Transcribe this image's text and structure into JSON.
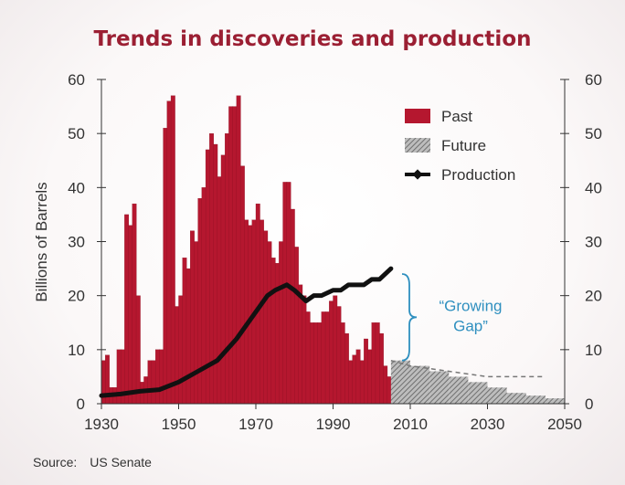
{
  "colors": {
    "title": "#9b1f33",
    "past": "#b5172f",
    "future": "#8f8f8f",
    "production": "#111111",
    "gap_annotation": "#2e8fbf",
    "axis": "#333333"
  },
  "source": {
    "label": "Source:",
    "value": "US Senate"
  },
  "chart_data": {
    "type": "bar",
    "title": "Trends in discoveries and production",
    "ylabel": "Billions of Barrels",
    "ylim": [
      0,
      60
    ],
    "xlim": [
      1930,
      2050
    ],
    "x_ticks": [
      "1930",
      "1950",
      "1970",
      "1990",
      "2010",
      "2030",
      "2050"
    ],
    "y_ticks": [
      "0",
      "10",
      "20",
      "30",
      "40",
      "50",
      "60"
    ],
    "y2_ticks": [
      "0",
      "10",
      "20",
      "30",
      "40",
      "50",
      "60"
    ],
    "legend": {
      "position": "top-right",
      "entries": [
        "Past",
        "Future",
        "Production"
      ]
    },
    "annotation": "“Growing Gap”",
    "series": [
      {
        "name": "Past",
        "style": "bars",
        "x": [
          1930,
          1931,
          1932,
          1933,
          1934,
          1935,
          1936,
          1937,
          1938,
          1939,
          1940,
          1941,
          1942,
          1943,
          1944,
          1945,
          1946,
          1947,
          1948,
          1949,
          1950,
          1951,
          1952,
          1953,
          1954,
          1955,
          1956,
          1957,
          1958,
          1959,
          1960,
          1961,
          1962,
          1963,
          1964,
          1965,
          1966,
          1967,
          1968,
          1969,
          1970,
          1971,
          1972,
          1973,
          1974,
          1975,
          1976,
          1977,
          1978,
          1979,
          1980,
          1981,
          1982,
          1983,
          1984,
          1985,
          1986,
          1987,
          1988,
          1989,
          1990,
          1991,
          1992,
          1993,
          1994,
          1995,
          1996,
          1997,
          1998,
          1999,
          2000,
          2001,
          2002,
          2003,
          2004
        ],
        "values": [
          8,
          9,
          3,
          3,
          10,
          10,
          35,
          33,
          37,
          20,
          4,
          5,
          8,
          8,
          10,
          10,
          51,
          56,
          57,
          18,
          20,
          27,
          25,
          32,
          30,
          38,
          40,
          47,
          50,
          48,
          42,
          46,
          50,
          55,
          55,
          57,
          44,
          34,
          33,
          34,
          37,
          34,
          32,
          30,
          27,
          26,
          30,
          41,
          41,
          36,
          29,
          22,
          20,
          17,
          15,
          15,
          15,
          17,
          17,
          19,
          20,
          18,
          15,
          13,
          8,
          9,
          10,
          8,
          12,
          10,
          15,
          15,
          13,
          7,
          5
        ]
      },
      {
        "name": "Future",
        "style": "hatched-bars",
        "x": [
          2005,
          2010,
          2015,
          2020,
          2025,
          2030,
          2035,
          2040,
          2045
        ],
        "values": [
          8,
          7,
          6,
          5,
          4,
          3,
          2,
          1.5,
          1
        ]
      },
      {
        "name": "Production",
        "style": "line",
        "x": [
          1930,
          1935,
          1940,
          1945,
          1950,
          1955,
          1960,
          1965,
          1970,
          1973,
          1975,
          1978,
          1980,
          1983,
          1985,
          1987,
          1990,
          1992,
          1994,
          1996,
          1998,
          2000,
          2002,
          2005
        ],
        "values": [
          1.5,
          1.8,
          2.3,
          2.6,
          4,
          6,
          8,
          12,
          17,
          20,
          21,
          22,
          21,
          19,
          20,
          20,
          21,
          21,
          22,
          22,
          22,
          23,
          23,
          25
        ]
      },
      {
        "name": "Discovery trend (dashed)",
        "style": "dashed",
        "x": [
          2005,
          2010,
          2015,
          2020,
          2025,
          2030,
          2035,
          2040,
          2045
        ],
        "values": [
          8,
          7,
          6.5,
          6,
          5.5,
          5,
          5,
          5,
          5
        ]
      }
    ]
  }
}
